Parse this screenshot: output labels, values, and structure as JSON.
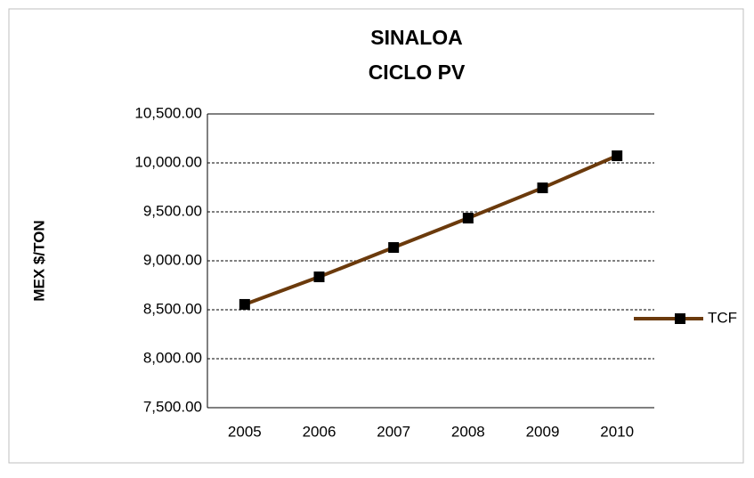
{
  "chart_data": {
    "type": "line",
    "title": [
      "SINALOA",
      "CICLO PV"
    ],
    "y_label": "MEX $/TON",
    "categories": [
      "2005",
      "2006",
      "2007",
      "2008",
      "2009",
      "2010"
    ],
    "series": [
      {
        "name": "TCF",
        "color": "#6b3a0c",
        "marker_color": "#000000",
        "values": [
          8555,
          8836,
          9136,
          9436,
          9745,
          10073
        ]
      }
    ],
    "ylim": [
      7500,
      10500
    ],
    "yticks": [
      {
        "value": 7500,
        "label": "7,500.00"
      },
      {
        "value": 8000,
        "label": "8,000.00"
      },
      {
        "value": 8500,
        "label": "8,500.00"
      },
      {
        "value": 9000,
        "label": "9,000.00"
      },
      {
        "value": 9500,
        "label": "9,500.00"
      },
      {
        "value": 10000,
        "label": "10,000.00"
      },
      {
        "value": 10500,
        "label": "10,500.00"
      }
    ],
    "grid": true,
    "legend": "right"
  }
}
